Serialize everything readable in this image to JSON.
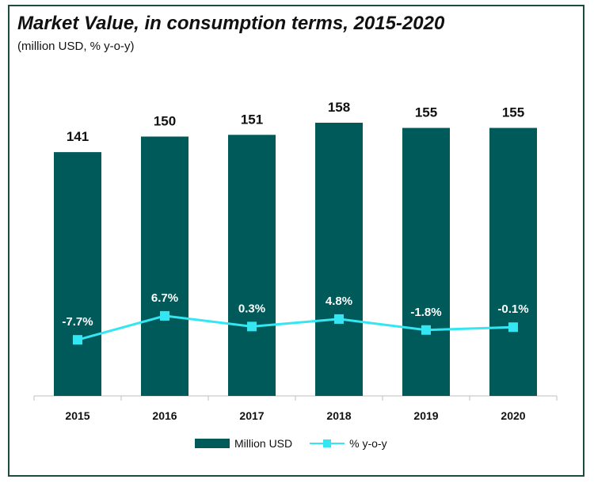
{
  "chart_data": {
    "type": "bar",
    "title": "Market Value, in consumption terms, 2015-2020",
    "subtitle": "(million USD, % y-o-y)",
    "categories": [
      "2015",
      "2016",
      "2017",
      "2018",
      "2019",
      "2020"
    ],
    "series": [
      {
        "name": "Million USD",
        "type": "bar",
        "values": [
          141,
          150,
          151,
          158,
          155,
          155
        ],
        "labels": [
          "141",
          "150",
          "151",
          "158",
          "155",
          "155"
        ],
        "color": "#005a5a"
      },
      {
        "name": "% y-o-y",
        "type": "line",
        "values": [
          -7.7,
          6.7,
          0.3,
          4.8,
          -1.8,
          -0.1
        ],
        "labels": [
          "-7.7%",
          "6.7%",
          "0.3%",
          "4.8%",
          "-1.8%",
          "-0.1%"
        ],
        "color": "#33e6f2"
      }
    ],
    "ylim_bar": [
      0,
      170
    ],
    "ylim_pct": [
      -30,
      20
    ],
    "grid": false,
    "legend_position": "bottom"
  }
}
